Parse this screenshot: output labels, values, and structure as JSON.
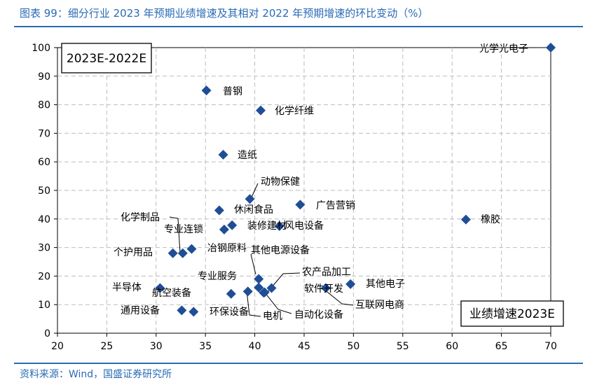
{
  "header": {
    "title": "图表 99：细分行业 2023 年预期业绩增速及其相对 2022 年预期增速的环比变动（%）"
  },
  "footer": {
    "source": "资料来源：Wind，国盛证券研究所"
  },
  "chart_data": {
    "type": "scatter",
    "xlim": [
      20,
      70
    ],
    "ylim": [
      0,
      100
    ],
    "xticks": [
      20,
      25,
      30,
      35,
      40,
      45,
      50,
      55,
      60,
      65,
      70
    ],
    "yticks": [
      0,
      10,
      20,
      30,
      40,
      50,
      60,
      70,
      80,
      90,
      100
    ],
    "grid": true,
    "marker_color": "#1f4e96",
    "annotation_topleft": "2023E-2022E",
    "annotation_bottomright": "业绩增速2023E",
    "points": [
      {
        "label": "光学光电子",
        "x": 70.0,
        "y": 100.0
      },
      {
        "label": "普钢",
        "x": 35.1,
        "y": 85.0
      },
      {
        "label": "化学纤维",
        "x": 40.6,
        "y": 78.0
      },
      {
        "label": "造纸",
        "x": 36.8,
        "y": 62.5
      },
      {
        "label": "动物保健",
        "x": 39.5,
        "y": 47.0
      },
      {
        "label": "广告营销",
        "x": 44.6,
        "y": 45.0
      },
      {
        "label": "休闲食品",
        "x": 36.4,
        "y": 43.0
      },
      {
        "label": "橡胶",
        "x": 61.4,
        "y": 39.8
      },
      {
        "label": "装修建材",
        "x": 37.7,
        "y": 37.8
      },
      {
        "label": "风电设备",
        "x": 42.5,
        "y": 37.5
      },
      {
        "label": "专业连锁",
        "x": 36.9,
        "y": 36.3
      },
      {
        "label": "化学制品",
        "x": 32.7,
        "y": 28.0
      },
      {
        "label": "冶钢原料",
        "x": 33.6,
        "y": 29.5
      },
      {
        "label": "个护用品",
        "x": 31.7,
        "y": 28.0
      },
      {
        "label": "其他电源设备",
        "x": 40.4,
        "y": 19.0
      },
      {
        "label": "专业服务",
        "x": 40.4,
        "y": 16.0
      },
      {
        "label": "其他电子",
        "x": 49.7,
        "y": 17.2
      },
      {
        "label": "半导体",
        "x": 30.4,
        "y": 15.8
      },
      {
        "label": "航空装备",
        "x": 37.6,
        "y": 13.8
      },
      {
        "label": "农产品加工",
        "x": 41.7,
        "y": 15.8
      },
      {
        "label": "软件开发",
        "x": 41.0,
        "y": 14.3
      },
      {
        "label": "互联网电商",
        "x": 47.2,
        "y": 15.8
      },
      {
        "label": "电机",
        "x": 39.3,
        "y": 14.6
      },
      {
        "label": "自动化设备",
        "x": 40.9,
        "y": 14.2
      },
      {
        "label": "通用设备",
        "x": 32.6,
        "y": 8.0
      },
      {
        "label": "环保设备",
        "x": 33.8,
        "y": 7.5
      }
    ]
  }
}
